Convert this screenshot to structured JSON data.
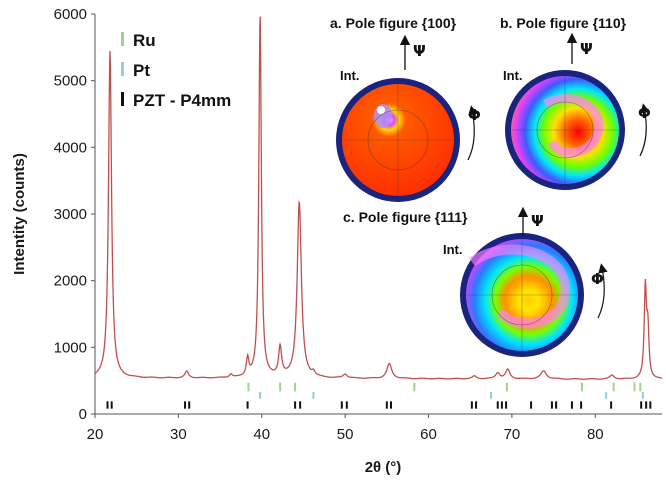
{
  "chart_data": {
    "type": "line",
    "xlabel": "2θ (°)",
    "ylabel": "Intentity (counts)",
    "xlim": [
      20,
      88
    ],
    "ylim": [
      0,
      6000
    ],
    "x_ticks": [
      20,
      30,
      40,
      50,
      60,
      70,
      80
    ],
    "y_ticks": [
      0,
      1000,
      2000,
      3000,
      4000,
      5000,
      6000
    ],
    "grid": false,
    "series_color": "#c0504d",
    "baseline": 540,
    "peaks": [
      {
        "x": 21.8,
        "y": 5450,
        "w": 0.22
      },
      {
        "x": 31.0,
        "y": 640,
        "w": 0.25
      },
      {
        "x": 36.3,
        "y": 590,
        "w": 0.2
      },
      {
        "x": 38.3,
        "y": 810,
        "w": 0.18
      },
      {
        "x": 39.8,
        "y": 6000,
        "w": 0.18
      },
      {
        "x": 42.2,
        "y": 980,
        "w": 0.22
      },
      {
        "x": 44.5,
        "y": 3180,
        "w": 0.3
      },
      {
        "x": 46.2,
        "y": 600,
        "w": 0.2
      },
      {
        "x": 50.0,
        "y": 600,
        "w": 0.3
      },
      {
        "x": 55.3,
        "y": 760,
        "w": 0.35
      },
      {
        "x": 65.5,
        "y": 580,
        "w": 0.3
      },
      {
        "x": 68.3,
        "y": 630,
        "w": 0.3
      },
      {
        "x": 69.5,
        "y": 680,
        "w": 0.3
      },
      {
        "x": 73.8,
        "y": 660,
        "w": 0.4
      },
      {
        "x": 82.0,
        "y": 600,
        "w": 0.3
      },
      {
        "x": 86.0,
        "y": 1880,
        "w": 0.16
      },
      {
        "x": 86.3,
        "y": 1250,
        "w": 0.16
      }
    ],
    "reference_markers": {
      "Ru": {
        "color": "#a8d08d",
        "positions": [
          38.4,
          42.2,
          44.0,
          58.3,
          69.4,
          78.4,
          82.2,
          84.7,
          85.4
        ]
      },
      "Pt": {
        "color": "#92cddc",
        "positions": [
          39.8,
          46.2,
          67.5,
          81.3,
          85.7
        ]
      },
      "PZT": {
        "color": "#111111",
        "positions": [
          21.5,
          22.0,
          30.8,
          31.3,
          38.3,
          44.0,
          44.6,
          49.6,
          50.2,
          55.0,
          55.5,
          65.2,
          65.7,
          68.3,
          68.8,
          69.3,
          72.3,
          74.8,
          75.3,
          77.2,
          78.3,
          81.9,
          85.5,
          86.1,
          86.6
        ]
      }
    },
    "legend": {
      "placement": "top-left",
      "entries": [
        {
          "label": "Ru",
          "color": "#a8d08d"
        },
        {
          "label": "Pt",
          "color": "#92cddc"
        },
        {
          "label": "PZT - P4mm",
          "color": "#111111"
        }
      ]
    },
    "insets": [
      {
        "title": "a. Pole figure {100}",
        "psi": "Ψ",
        "phi": "Φ",
        "int": "Int.",
        "style": "red-disc"
      },
      {
        "title": "b. Pole figure {110}",
        "psi": "Ψ",
        "phi": "Φ",
        "int": "Int.",
        "style": "rainbow-ring"
      },
      {
        "title": "c. Pole figure {111}",
        "psi": "Ψ",
        "phi": "Φ",
        "int": "Int.",
        "style": "rainbow-ring"
      }
    ]
  }
}
